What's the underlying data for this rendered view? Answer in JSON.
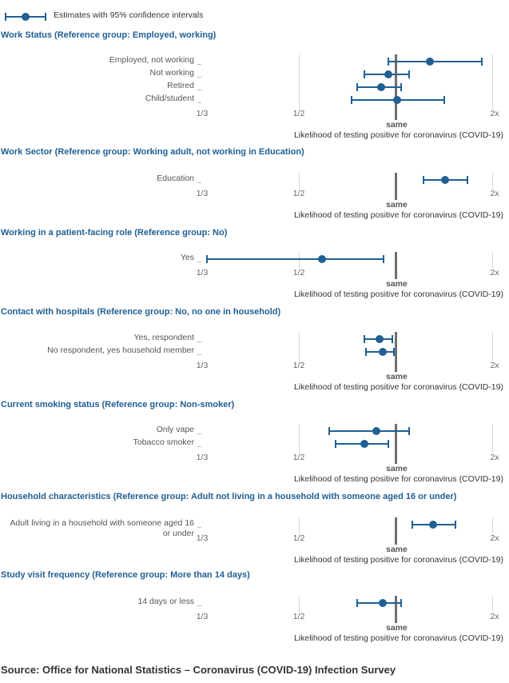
{
  "legend": {
    "label": "Estimates with 95% confidence intervals",
    "color": "#206095"
  },
  "source": "Source: Office for National Statistics – Coronavirus (COVID-19) Infection Survey",
  "chart_data": [
    {
      "type": "forest",
      "title": "Work Status (Reference group: Employed, working)",
      "xlabel": "Likelihood of testing positive for coronavirus (COVID-19)",
      "x_ticks": [
        "1/3",
        "1/2",
        "same",
        "2x"
      ],
      "x_scale": "log",
      "reference_value": 1,
      "rows": [
        {
          "label": "Employed, not working",
          "estimate": 1.28,
          "lower": 0.95,
          "upper": 1.86
        },
        {
          "label": "Not working",
          "estimate": 0.95,
          "lower": 0.8,
          "upper": 1.1
        },
        {
          "label": "Retired",
          "estimate": 0.9,
          "lower": 0.76,
          "upper": 1.04
        },
        {
          "label": "Child/student",
          "estimate": 1.01,
          "lower": 0.73,
          "upper": 1.42
        }
      ]
    },
    {
      "type": "forest",
      "title": "Work Sector (Reference group: Working adult, not working in Education)",
      "xlabel": "Likelihood of testing positive for coronavirus (COVID-19)",
      "x_ticks": [
        "1/3",
        "1/2",
        "same",
        "2x"
      ],
      "x_scale": "log",
      "reference_value": 1,
      "rows": [
        {
          "label": "Education",
          "estimate": 1.43,
          "lower": 1.22,
          "upper": 1.67
        }
      ]
    },
    {
      "type": "forest",
      "title": "Working in a patient-facing role (Reference group: No)",
      "xlabel": "Likelihood of testing positive for coronavirus (COVID-19)",
      "x_ticks": [
        "1/3",
        "1/2",
        "same",
        "2x"
      ],
      "x_scale": "log",
      "reference_value": 1,
      "rows": [
        {
          "label": "Yes",
          "estimate": 0.59,
          "lower": 0.34,
          "upper": 0.92
        }
      ]
    },
    {
      "type": "forest",
      "title": "Contact with hospitals (Reference group: No, no one in household)",
      "xlabel": "Likelihood of testing positive for coronavirus (COVID-19)",
      "x_ticks": [
        "1/3",
        "1/2",
        "same",
        "2x"
      ],
      "x_scale": "log",
      "reference_value": 1,
      "rows": [
        {
          "label": "Yes, respondent",
          "estimate": 0.89,
          "lower": 0.8,
          "upper": 0.98
        },
        {
          "label": "No respondent, yes household member",
          "estimate": 0.91,
          "lower": 0.81,
          "upper": 0.99
        }
      ]
    },
    {
      "type": "forest",
      "title": "Current smoking status (Reference group: Non-smoker)",
      "xlabel": "Likelihood of testing positive for coronavirus (COVID-19)",
      "x_ticks": [
        "1/3",
        "1/2",
        "same",
        "2x"
      ],
      "x_scale": "log",
      "reference_value": 1,
      "rows": [
        {
          "label": "Only vape",
          "estimate": 0.87,
          "lower": 0.62,
          "upper": 1.1
        },
        {
          "label": "Tobacco smoker",
          "estimate": 0.8,
          "lower": 0.65,
          "upper": 0.95
        }
      ]
    },
    {
      "type": "forest",
      "title": "Household characteristics (Reference group: Adult not living in a household with someone aged 16 or under)",
      "xlabel": "Likelihood of testing positive for coronavirus (COVID-19)",
      "x_ticks": [
        "1/3",
        "1/2",
        "same",
        "2x"
      ],
      "x_scale": "log",
      "reference_value": 1,
      "rows": [
        {
          "label": "Adult living in a household with someone aged 16 or under",
          "estimate": 1.31,
          "lower": 1.13,
          "upper": 1.54
        }
      ]
    },
    {
      "type": "forest",
      "title": "Study visit frequency (Reference group: More than 14 days)",
      "xlabel": "Likelihood of testing positive for coronavirus (COVID-19)",
      "x_ticks": [
        "1/3",
        "1/2",
        "same",
        "2x"
      ],
      "x_scale": "log",
      "reference_value": 1,
      "rows": [
        {
          "label": "14 days or less",
          "estimate": 0.91,
          "lower": 0.76,
          "upper": 1.04
        }
      ]
    }
  ]
}
